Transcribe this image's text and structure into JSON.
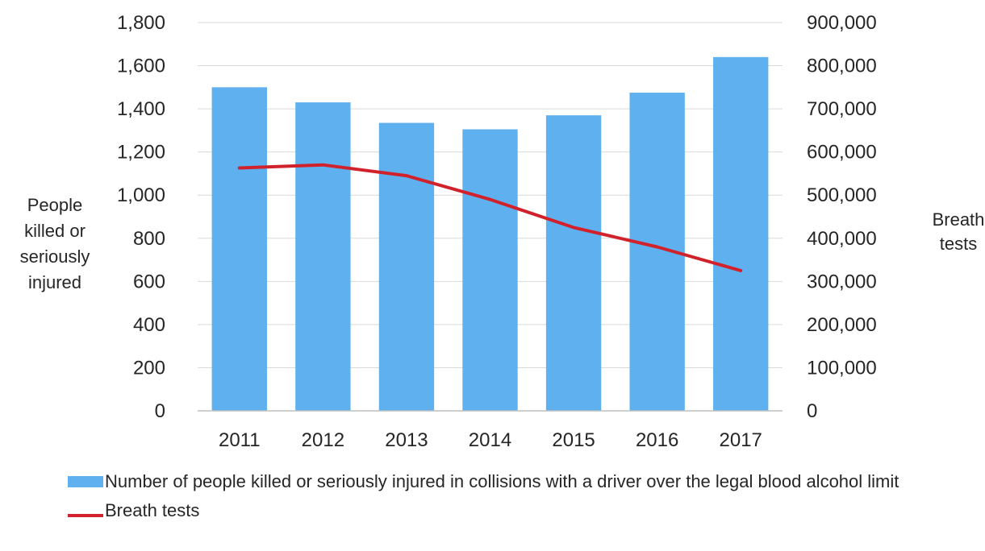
{
  "chart_data": {
    "type": "bar",
    "categories": [
      "2011",
      "2012",
      "2013",
      "2014",
      "2015",
      "2016",
      "2017"
    ],
    "series": [
      {
        "name": "Number of people killed or seriously injured in collisions with a driver over the legal blood alcohol limit",
        "type": "bar",
        "axis": "left",
        "color": "#5fb0ef",
        "values": [
          1500,
          1430,
          1335,
          1305,
          1370,
          1475,
          1640
        ]
      },
      {
        "name": "Breath tests",
        "type": "line",
        "axis": "right",
        "color": "#d1222b",
        "values": [
          563000,
          570000,
          545000,
          490000,
          425000,
          380000,
          325000
        ]
      }
    ],
    "left_axis": {
      "label_lines": [
        "People",
        "killed or",
        "seriously",
        "injured"
      ],
      "ylim": [
        0,
        1800
      ],
      "ticks": [
        "0",
        "200",
        "400",
        "600",
        "800",
        "1,000",
        "1,200",
        "1,400",
        "1,600",
        "1,800"
      ]
    },
    "right_axis": {
      "label_lines": [
        "Breath",
        "tests"
      ],
      "ylim": [
        0,
        900000
      ],
      "ticks": [
        "0",
        "100,000",
        "200,000",
        "300,000",
        "400,000",
        "500,000",
        "600,000",
        "700,000",
        "800,000",
        "900,000"
      ]
    },
    "grid": true,
    "legend": {
      "placement": "bottom-left"
    }
  }
}
